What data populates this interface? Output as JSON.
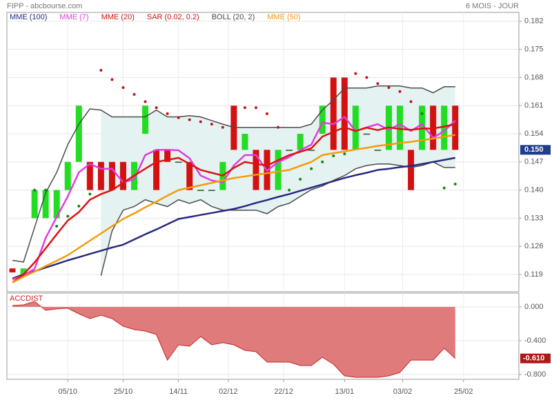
{
  "chart_data": [
    {
      "type": "candlestick",
      "title": "FIPP - abcbourse.com",
      "subtitle": "6 MOIS - JOUR",
      "x": [
        "15/09",
        "19/09",
        "23/09",
        "27/09",
        "01/10",
        "05/10",
        "09/10",
        "13/10",
        "17/10",
        "21/10",
        "25/10",
        "29/10",
        "02/11",
        "06/11",
        "10/11",
        "14/11",
        "18/11",
        "22/11",
        "26/11",
        "30/11",
        "04/12",
        "08/12",
        "12/12",
        "16/12",
        "20/12",
        "24/12",
        "28/12",
        "01/01",
        "05/01",
        "09/01",
        "13/01",
        "17/01",
        "21/01",
        "25/01",
        "29/01",
        "02/02",
        "06/02",
        "10/02",
        "14/02",
        "18/02",
        "22/02"
      ],
      "xlim": [
        "13/09",
        "17/03"
      ],
      "xticks": [
        "05/10",
        "25/10",
        "14/11",
        "02/12",
        "22/12",
        "13/01",
        "03/02",
        "25/02"
      ],
      "ylim": [
        0.1147,
        0.1842
      ],
      "yticks": [
        0.119,
        0.126,
        0.133,
        {
          "value": 0.14,
          "label": "0.140"
        },
        0.147,
        0.154,
        0.161,
        0.168,
        0.175,
        0.182
      ],
      "grid": true,
      "open": [
        0.1205,
        0.119,
        0.133,
        0.133,
        0.133,
        0.14,
        0.147,
        0.147,
        0.147,
        0.147,
        0.147,
        0.14,
        0.154,
        0.15,
        0.15,
        0.147,
        0.147,
        0.14,
        0.14,
        0.14,
        0.161,
        0.15,
        0.15,
        0.15,
        0.14,
        0.15,
        0.15,
        0.15,
        0.154,
        0.168,
        0.168,
        0.15,
        0.154,
        0.15,
        0.15,
        0.15,
        0.15,
        0.15,
        0.161,
        0.15,
        0.161
      ],
      "close": [
        0.1195,
        0.1205,
        0.14,
        0.14,
        0.14,
        0.147,
        0.161,
        0.14,
        0.14,
        0.14,
        0.14,
        0.147,
        0.161,
        0.14,
        0.147,
        0.147,
        0.14,
        0.14,
        0.14,
        0.147,
        0.15,
        0.154,
        0.14,
        0.14,
        0.15,
        0.15,
        0.154,
        0.15,
        0.161,
        0.15,
        0.15,
        0.161,
        0.154,
        0.15,
        0.161,
        0.161,
        0.14,
        0.161,
        0.15,
        0.161,
        0.15
      ],
      "up_color": "#22dd22",
      "down_color": "#d41111",
      "series": [
        {
          "name": "MME (100)",
          "style": "line",
          "color": "#27287f",
          "values": [
            0.118,
            0.119,
            0.1198,
            0.1207,
            0.1216,
            0.1225,
            0.1233,
            0.1241,
            0.1249,
            0.1257,
            0.1264,
            0.1277,
            0.129,
            0.1302,
            0.1315,
            0.1328,
            0.1333,
            0.1338,
            0.1343,
            0.1348,
            0.1353,
            0.136,
            0.1368,
            0.1375,
            0.1383,
            0.139,
            0.1398,
            0.1406,
            0.1414,
            0.1422,
            0.143,
            0.1437,
            0.1443,
            0.145,
            0.1453,
            0.1457,
            0.146,
            0.1465,
            0.147,
            0.1475,
            0.148
          ]
        },
        {
          "name": "MME (7)",
          "style": "line",
          "color": "#e03ce0",
          "values": [
            0.1178,
            0.1187,
            0.1204,
            0.1281,
            0.1333,
            0.1384,
            0.1444,
            0.1465,
            0.1453,
            0.1453,
            0.1419,
            0.1427,
            0.1487,
            0.15,
            0.15,
            0.1499,
            0.1479,
            0.1436,
            0.1424,
            0.1419,
            0.1461,
            0.1487,
            0.1487,
            0.1448,
            0.147,
            0.1482,
            0.1499,
            0.1513,
            0.1568,
            0.1564,
            0.1582,
            0.1547,
            0.1556,
            0.1564,
            0.155,
            0.1564,
            0.1547,
            0.1564,
            0.153,
            0.1547,
            0.1573
          ]
        },
        {
          "name": "MME (20)",
          "style": "line",
          "color": "#dd1111",
          "values": [
            0.117,
            0.119,
            0.122,
            0.1255,
            0.129,
            0.1324,
            0.1345,
            0.1376,
            0.139,
            0.14,
            0.1418,
            0.1436,
            0.1453,
            0.147,
            0.1475,
            0.148,
            0.1465,
            0.145,
            0.1443,
            0.1436,
            0.1455,
            0.147,
            0.1465,
            0.1461,
            0.1474,
            0.1487,
            0.1495,
            0.1504,
            0.1533,
            0.1545,
            0.1556,
            0.1547,
            0.1555,
            0.1549,
            0.1556,
            0.1552,
            0.155,
            0.1553,
            0.1553,
            0.1558,
            0.1564
          ]
        },
        {
          "name": "SAR (0.02, 0.2)",
          "style": "dots",
          "color": "#cc1111",
          "below_color": "#118811",
          "values": [
            null,
            null,
            0.14,
            0.14,
            0.131,
            0.1335,
            0.136,
            0.139,
            0.1698,
            0.1675,
            0.1655,
            0.1638,
            0.162,
            0.1605,
            0.159,
            0.158,
            0.1575,
            0.157,
            0.1564,
            0.1556,
            0.155,
            0.1605,
            0.1605,
            0.159,
            0.1556,
            0.14,
            0.1427,
            0.1453,
            0.147,
            0.1485,
            0.149,
            0.169,
            0.168,
            0.1665,
            0.1655,
            0.1645,
            0.162,
            0.159,
            0.156,
            0.1405,
            0.1415
          ]
        },
        {
          "name": "BOLL (20, 2)",
          "style": "band",
          "color": "#4a4a4a",
          "fill": "#e4f2f2",
          "upper": [
            0.1225,
            0.1221,
            0.1307,
            0.1393,
            0.1444,
            0.1513,
            0.1564,
            0.1602,
            0.1599,
            0.1582,
            0.1582,
            0.1582,
            0.1582,
            0.1599,
            0.1582,
            0.1582,
            0.1585,
            0.1582,
            0.1573,
            0.1564,
            0.1556,
            0.1556,
            0.1556,
            0.1556,
            0.1556,
            0.1556,
            0.1556,
            0.1564,
            0.1599,
            0.1624,
            0.1654,
            0.1654,
            0.1654,
            0.1659,
            0.1659,
            0.1659,
            0.1654,
            0.1654,
            0.1642,
            0.1657,
            0.1657
          ],
          "lower": [
            null,
            null,
            null,
            null,
            null,
            null,
            null,
            null,
            0.1187,
            0.1298,
            0.135,
            0.1359,
            0.1376,
            0.1367,
            0.1359,
            0.1376,
            0.1367,
            0.1376,
            0.1359,
            0.135,
            0.135,
            0.135,
            0.135,
            0.1341,
            0.1359,
            0.1367,
            0.1384,
            0.1401,
            0.141,
            0.1424,
            0.1436,
            0.1453,
            0.1461,
            0.1465,
            0.1465,
            0.1461,
            0.1456,
            0.1461,
            0.147,
            0.1456,
            0.1456
          ]
        },
        {
          "name": "MME (50)",
          "style": "line",
          "color": "#f59a0a",
          "values": [
            0.117,
            0.1184,
            0.1197,
            0.1211,
            0.1224,
            0.1238,
            0.1256,
            0.1274,
            0.1292,
            0.131,
            0.1328,
            0.1342,
            0.1357,
            0.1371,
            0.1386,
            0.14,
            0.1406,
            0.1412,
            0.1418,
            0.1424,
            0.143,
            0.1434,
            0.1438,
            0.1442,
            0.1446,
            0.145,
            0.146,
            0.147,
            0.1487,
            0.1492,
            0.1496,
            0.1501,
            0.1505,
            0.151,
            0.1513,
            0.1517,
            0.152,
            0.1524,
            0.1528,
            0.1533,
            0.1537
          ]
        }
      ],
      "last_price": {
        "value": 0.15,
        "label": "0.150"
      },
      "last_color": "#1f3d8c"
    },
    {
      "type": "area",
      "title": "ACCDIST",
      "color": "#cc2222",
      "fill": "#df7b7b",
      "values": [
        0.016,
        0.024,
        0.065,
        -0.041,
        -0.024,
        -0.016,
        -0.082,
        -0.139,
        -0.098,
        -0.139,
        -0.229,
        -0.269,
        -0.286,
        -0.327,
        -0.629,
        -0.449,
        -0.465,
        -0.351,
        -0.449,
        -0.424,
        -0.449,
        -0.514,
        -0.531,
        -0.653,
        -0.653,
        -0.653,
        -0.694,
        -0.694,
        -0.596,
        -0.678,
        -0.816,
        -0.833,
        -0.833,
        -0.833,
        -0.816,
        -0.776,
        -0.629,
        -0.629,
        -0.629,
        -0.49,
        -0.61
      ],
      "ylim": [
        -0.857,
        0.163
      ],
      "yticks": [
        {
          "value": -0.8,
          "label": "-0.800"
        },
        {
          "value": -0.4,
          "label": "-0.400"
        },
        {
          "value": 0,
          "label": "0.000"
        }
      ],
      "last_value": {
        "value": -0.61,
        "label": "-0.610"
      },
      "last_color": "#b01818"
    }
  ]
}
